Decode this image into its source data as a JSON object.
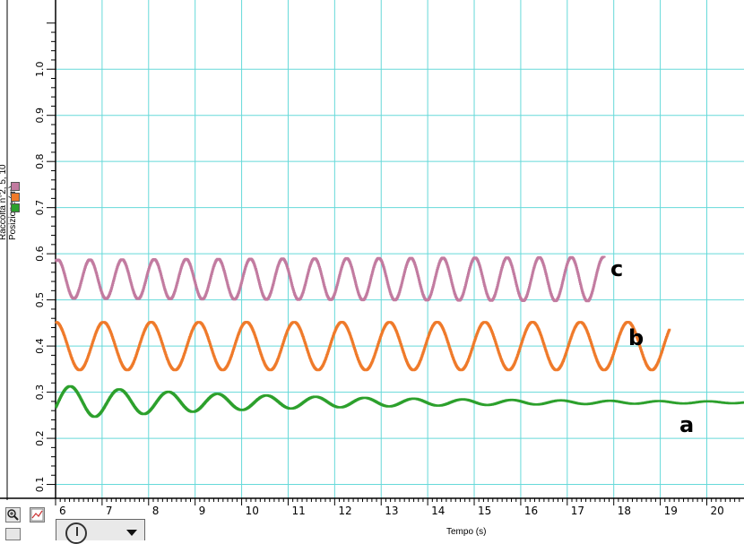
{
  "chart_data": {
    "type": "line",
    "xlabel": "Tempo (s)",
    "ylabel_lines": [
      "Raccolta n°2, 5, 10",
      "Posizione (m)"
    ],
    "xlim": [
      6,
      20.8
    ],
    "ylim": [
      0.07,
      1.15
    ],
    "x_ticks": [
      6,
      7,
      8,
      9,
      10,
      11,
      12,
      13,
      14,
      15,
      16,
      17,
      18,
      19,
      20
    ],
    "y_ticks": [
      0.1,
      0.2,
      0.3,
      0.4,
      0.5,
      0.6,
      0.7,
      0.8,
      0.9,
      1.0
    ],
    "grid": true,
    "legend": "left",
    "series": [
      {
        "name": "c",
        "color": "#c27ba0",
        "x_start": 6.0,
        "x_end": 17.8,
        "period": 0.69,
        "phase": 6.0,
        "center": 0.545,
        "amplitude": 0.042,
        "amp_growth": 0.0005
      },
      {
        "name": "b",
        "color": "#ef7a2a",
        "x_start": 6.0,
        "x_end": 19.2,
        "period": 1.025,
        "phase": 6.0,
        "center": 0.4,
        "amplitude": 0.052,
        "amp_growth": 0
      },
      {
        "name": "a",
        "color": "#2ca02c",
        "x_start": 6.0,
        "x_end": 20.8,
        "period": 1.055,
        "phase": 6.0,
        "center": 0.278,
        "amplitude": 0.037,
        "decay": 0.2
      }
    ],
    "annotations": [
      {
        "text": "c",
        "series": "c"
      },
      {
        "text": "b",
        "series": "b"
      },
      {
        "text": "a",
        "series": "a"
      }
    ]
  },
  "colors": {
    "grid": "#66d9d9",
    "axis": "#000000"
  }
}
